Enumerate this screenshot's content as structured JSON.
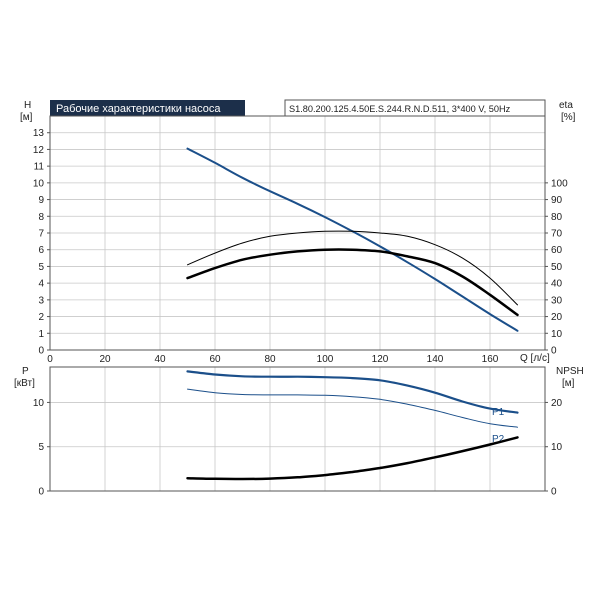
{
  "header": {
    "title": "Рабочие характеристики насоса",
    "model": "S1.80.200.125.4.50E.S.244.R.N.D.511, 3*400 V, 50Hz"
  },
  "colors": {
    "blue": "#1b4f8a",
    "black": "#000000",
    "title_bg": "#1c2f4a"
  },
  "chart_data": [
    {
      "type": "line",
      "name": "head-efficiency",
      "xlabel": "Q [л/с]",
      "ylabel_left": "H",
      "ylabel_left_unit": "[м]",
      "ylabel_right": "eta",
      "ylabel_right_unit": "[%]",
      "xlim": [
        0,
        180
      ],
      "ylim_left": [
        0,
        14
      ],
      "ylim_right": [
        0,
        140
      ],
      "x_ticks": [
        0,
        20,
        40,
        60,
        80,
        100,
        120,
        140,
        160
      ],
      "y_left_ticks": [
        0,
        1,
        2,
        3,
        4,
        5,
        6,
        7,
        8,
        9,
        10,
        11,
        12,
        13
      ],
      "y_right_ticks": [
        0,
        10,
        20,
        30,
        40,
        50,
        60,
        70,
        80,
        90,
        100
      ],
      "grid": true,
      "series": [
        {
          "color": "#1b4f8a",
          "width": 2,
          "axis": "left",
          "x": [
            50,
            60,
            70,
            80,
            90,
            100,
            110,
            120,
            130,
            140,
            150,
            160,
            170
          ],
          "y": [
            12.05,
            11.2,
            10.3,
            9.5,
            8.75,
            7.95,
            7.1,
            6.2,
            5.25,
            4.25,
            3.2,
            2.15,
            1.15
          ]
        },
        {
          "color": "#000000",
          "width": 2.5,
          "axis": "right",
          "x": [
            50,
            60,
            70,
            80,
            90,
            100,
            110,
            120,
            130,
            140,
            150,
            160,
            170
          ],
          "y": [
            43,
            49,
            54,
            57,
            59,
            60,
            60,
            59,
            56,
            52,
            44,
            33,
            21
          ]
        },
        {
          "color": "#000000",
          "width": 1,
          "axis": "right",
          "x": [
            50,
            60,
            70,
            80,
            90,
            100,
            110,
            120,
            130,
            140,
            150,
            160,
            170
          ],
          "y": [
            51,
            58,
            64,
            68,
            70,
            71,
            71,
            70,
            68,
            63,
            55,
            43,
            27
          ]
        }
      ]
    },
    {
      "type": "line",
      "name": "power-npsh",
      "ylabel_left": "P",
      "ylabel_left_unit": "[кВт]",
      "ylabel_right": "NPSH",
      "ylabel_right_unit": "[м]",
      "xlim": [
        0,
        180
      ],
      "ylim_left": [
        0,
        14
      ],
      "ylim_right": [
        0,
        28
      ],
      "y_left_ticks": [
        0,
        5,
        10
      ],
      "y_right_ticks": [
        0,
        10,
        20
      ],
      "grid": true,
      "series": [
        {
          "name": "P1",
          "color": "#1b4f8a",
          "width": 2.2,
          "axis": "left",
          "x": [
            50,
            60,
            70,
            80,
            90,
            100,
            110,
            120,
            130,
            140,
            150,
            160,
            170
          ],
          "y": [
            13.5,
            13.15,
            12.95,
            12.9,
            12.9,
            12.85,
            12.75,
            12.5,
            11.9,
            11.1,
            10.1,
            9.3,
            8.85
          ]
        },
        {
          "name": "P2",
          "color": "#1b4f8a",
          "width": 1,
          "axis": "left",
          "x": [
            50,
            60,
            70,
            80,
            90,
            100,
            110,
            120,
            130,
            140,
            150,
            160,
            170
          ],
          "y": [
            11.5,
            11.1,
            10.9,
            10.85,
            10.85,
            10.8,
            10.65,
            10.35,
            9.8,
            9.1,
            8.3,
            7.6,
            7.2
          ]
        },
        {
          "color": "#000000",
          "width": 2.5,
          "axis": "right",
          "x": [
            50,
            60,
            70,
            80,
            90,
            100,
            110,
            120,
            130,
            140,
            150,
            160,
            170
          ],
          "y": [
            2.9,
            2.75,
            2.7,
            2.8,
            3.1,
            3.6,
            4.3,
            5.2,
            6.3,
            7.6,
            9.0,
            10.5,
            12.1
          ]
        }
      ]
    }
  ]
}
